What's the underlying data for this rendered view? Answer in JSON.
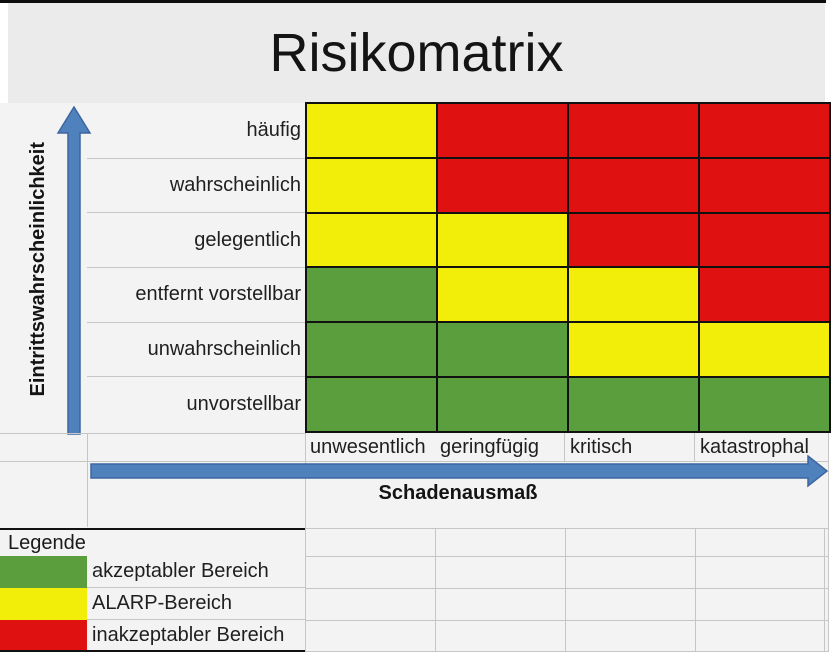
{
  "title": "Risikomatrix",
  "y_axis": {
    "label": "Eintrittswahrscheinlichkeit"
  },
  "x_axis": {
    "label": "Schadenausmaß"
  },
  "rows": [
    "häufig",
    "wahrscheinlich",
    "gelegentlich",
    "entfernt vorstellbar",
    "unwahrscheinlich",
    "unvorstellbar"
  ],
  "columns": [
    "unwesentlich",
    "geringfügig",
    "kritisch",
    "katastrophal"
  ],
  "matrix": [
    [
      "yellow",
      "red",
      "red",
      "red"
    ],
    [
      "yellow",
      "red",
      "red",
      "red"
    ],
    [
      "yellow",
      "yellow",
      "red",
      "red"
    ],
    [
      "green",
      "yellow",
      "yellow",
      "red"
    ],
    [
      "green",
      "green",
      "yellow",
      "yellow"
    ],
    [
      "green",
      "green",
      "green",
      "green"
    ]
  ],
  "legend": {
    "header": "Legende",
    "items": [
      {
        "color": "green",
        "label": "akzeptabler Bereich"
      },
      {
        "color": "yellow",
        "label": "ALARP-Bereich"
      },
      {
        "color": "red",
        "label": "inakzeptabler Bereich"
      }
    ]
  },
  "colors": {
    "green": "#5b9e3d",
    "yellow": "#f2ee0a",
    "red": "#e01111",
    "arrow_fill": "#4f81bd",
    "arrow_stroke": "#3c66a0"
  },
  "chart_data": {
    "type": "heatmap",
    "title": "Risikomatrix",
    "xlabel": "Schadenausmaß",
    "ylabel": "Eintrittswahrscheinlichkeit",
    "x_categories": [
      "unwesentlich",
      "geringfügig",
      "kritisch",
      "katastrophal"
    ],
    "y_categories_top_to_bottom": [
      "häufig",
      "wahrscheinlich",
      "gelegentlich",
      "entfernt vorstellbar",
      "unwahrscheinlich",
      "unvorstellbar"
    ],
    "values_top_to_bottom": [
      [
        "ALARP",
        "inakzeptabel",
        "inakzeptabel",
        "inakzeptabel"
      ],
      [
        "ALARP",
        "inakzeptabel",
        "inakzeptabel",
        "inakzeptabel"
      ],
      [
        "ALARP",
        "ALARP",
        "inakzeptabel",
        "inakzeptabel"
      ],
      [
        "akzeptabel",
        "ALARP",
        "ALARP",
        "inakzeptabel"
      ],
      [
        "akzeptabel",
        "akzeptabel",
        "ALARP",
        "ALARP"
      ],
      [
        "akzeptabel",
        "akzeptabel",
        "akzeptabel",
        "akzeptabel"
      ]
    ],
    "legend_position": "bottom-left",
    "legend_entries": [
      {
        "color_hex": "#5b9e3d",
        "label": "akzeptabler Bereich"
      },
      {
        "color_hex": "#f2ee0a",
        "label": "ALARP-Bereich"
      },
      {
        "color_hex": "#e01111",
        "label": "inakzeptabler Bereich"
      }
    ]
  }
}
